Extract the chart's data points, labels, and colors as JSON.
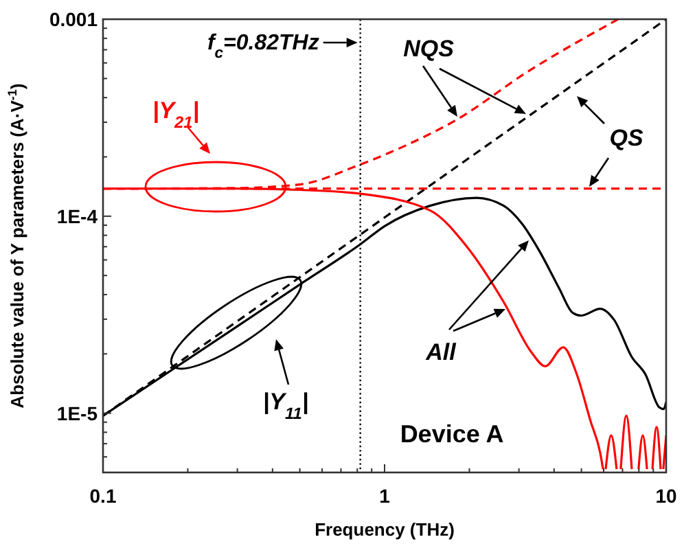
{
  "chart_data": {
    "type": "line",
    "xlabel": "Frequency (THz)",
    "ylabel": "Absolute value of Y parameters (A·V$^{-1}$)",
    "log": "xy",
    "marker": "none",
    "xlim": [
      0.1,
      10
    ],
    "ylim": [
      5e-06,
      0.001
    ],
    "xticks": [
      0.1,
      {
        "value": 0.2,
        "label": null
      },
      {
        "value": 0.3,
        "label": null
      },
      {
        "value": 0.4,
        "label": null
      },
      {
        "value": 0.5,
        "label": null
      },
      {
        "value": 0.6,
        "label": null
      },
      {
        "value": 0.7,
        "label": null
      },
      {
        "value": 0.8,
        "label": null
      },
      {
        "value": 0.9,
        "label": null
      },
      1,
      {
        "value": 2,
        "label": null
      },
      {
        "value": 3,
        "label": null
      },
      {
        "value": 4,
        "label": null
      },
      {
        "value": 5,
        "label": null
      },
      {
        "value": 6,
        "label": null
      },
      {
        "value": 7,
        "label": null
      },
      {
        "value": 8,
        "label": null
      },
      {
        "value": 9,
        "label": null
      },
      10
    ],
    "yticks": [
      {
        "value": 6e-06,
        "label": null
      },
      {
        "value": 7e-06,
        "label": null
      },
      {
        "value": 8e-06,
        "label": null
      },
      {
        "value": 9e-06,
        "label": null
      },
      {
        "value": 1e-05,
        "label": "1E-5"
      },
      {
        "value": 2e-05,
        "label": null
      },
      {
        "value": 3e-05,
        "label": null
      },
      {
        "value": 4e-05,
        "label": null
      },
      {
        "value": 5e-05,
        "label": null
      },
      {
        "value": 6e-05,
        "label": null
      },
      {
        "value": 7e-05,
        "label": null
      },
      {
        "value": 8e-05,
        "label": null
      },
      {
        "value": 9e-05,
        "label": null
      },
      {
        "value": 0.0001,
        "label": "1E-4"
      },
      {
        "value": 0.0002,
        "label": null
      },
      {
        "value": 0.0003,
        "label": null
      },
      {
        "value": 0.0004,
        "label": null
      },
      {
        "value": 0.0005,
        "label": null
      },
      {
        "value": 0.0006,
        "label": null
      },
      {
        "value": 0.0007,
        "label": null
      },
      {
        "value": 0.0008,
        "label": null
      },
      {
        "value": 0.0009,
        "label": null
      },
      0.001
    ],
    "series": [
      {
        "color": "#000000",
        "line_style": "dashed",
        "x": [
          0.1,
          10
        ],
        "values": [
          9.7e-06,
          0.001
        ]
      },
      {
        "color": "#ff0000",
        "line_style": "dashed",
        "x": [
          0.1,
          10
        ],
        "values": [
          0.000138,
          0.000138
        ]
      },
      {
        "color": "#ff0000",
        "line_style": "dashed",
        "x": [
          0.1,
          0.3,
          0.5,
          0.82,
          1.2,
          1.81,
          3.18,
          6.75
        ],
        "values": [
          0.000138,
          0.000139,
          0.000145,
          0.000183,
          0.00023,
          0.00031,
          0.000535,
          0.001
        ]
      },
      {
        "color": "#000000",
        "line_style": "solid",
        "x": [
          0.1,
          0.3,
          0.5,
          0.82,
          1.0,
          1.45,
          2.12,
          2.65,
          3.07,
          3.56,
          4.17,
          4.66,
          4.99,
          5.83,
          6.53,
          7.55,
          8.45,
          9.46,
          9.8,
          10
        ],
        "values": [
          9.7e-06,
          2.76e-05,
          4.5e-05,
          7.2e-05,
          8.9e-05,
          0.000113,
          0.000124,
          0.000113,
          9.2e-05,
          6.6e-05,
          4.3e-05,
          3.23e-05,
          3.13e-05,
          3.39e-05,
          2.98e-05,
          1.93e-05,
          1.57e-05,
          1.07e-05,
          1.05e-05,
          1.14e-05
        ]
      },
      {
        "color": "#ff0000",
        "line_style": "solid",
        "x": [
          0.1,
          0.3,
          0.5,
          0.82,
          1.45,
          1.96,
          2.65,
          3.33,
          3.72,
          4.31,
          4.82,
          5.39,
          5.83,
          5.97,
          6.0,
          6.1,
          6.38,
          6.67,
          6.8,
          6.9,
          7.22,
          7.55,
          7.8,
          7.98,
          8.26,
          8.55,
          8.8,
          8.94,
          9.25,
          9.56,
          9.7,
          9.77,
          10
        ],
        "values": [
          0.000138,
          0.000138,
          0.000136,
          0.00013,
          0.000107,
          7e-05,
          3.66e-05,
          2.03e-05,
          1.73e-05,
          2.16e-05,
          1.57e-05,
          9.1e-06,
          6.3e-06,
          5.2e-06,
          null,
          5.2e-06,
          7.7e-06,
          5.2e-06,
          null,
          5.2e-06,
          9.7e-06,
          5.2e-06,
          null,
          5.2e-06,
          7.7e-06,
          5.2e-06,
          null,
          5.2e-06,
          8.5e-06,
          5.2e-06,
          null,
          5.2e-06,
          7.7e-06
        ]
      }
    ],
    "ref_lines": [
      {
        "axis": "x",
        "value": 0.82,
        "label": "f$_{c}$=0.82THz",
        "line_style": "dotted",
        "color": "#000000"
      }
    ],
    "annotations": [
      "|Y$_{21}$|",
      "|Y$_{11}$|",
      "NQS",
      "QS",
      "All",
      "Device A"
    ]
  }
}
